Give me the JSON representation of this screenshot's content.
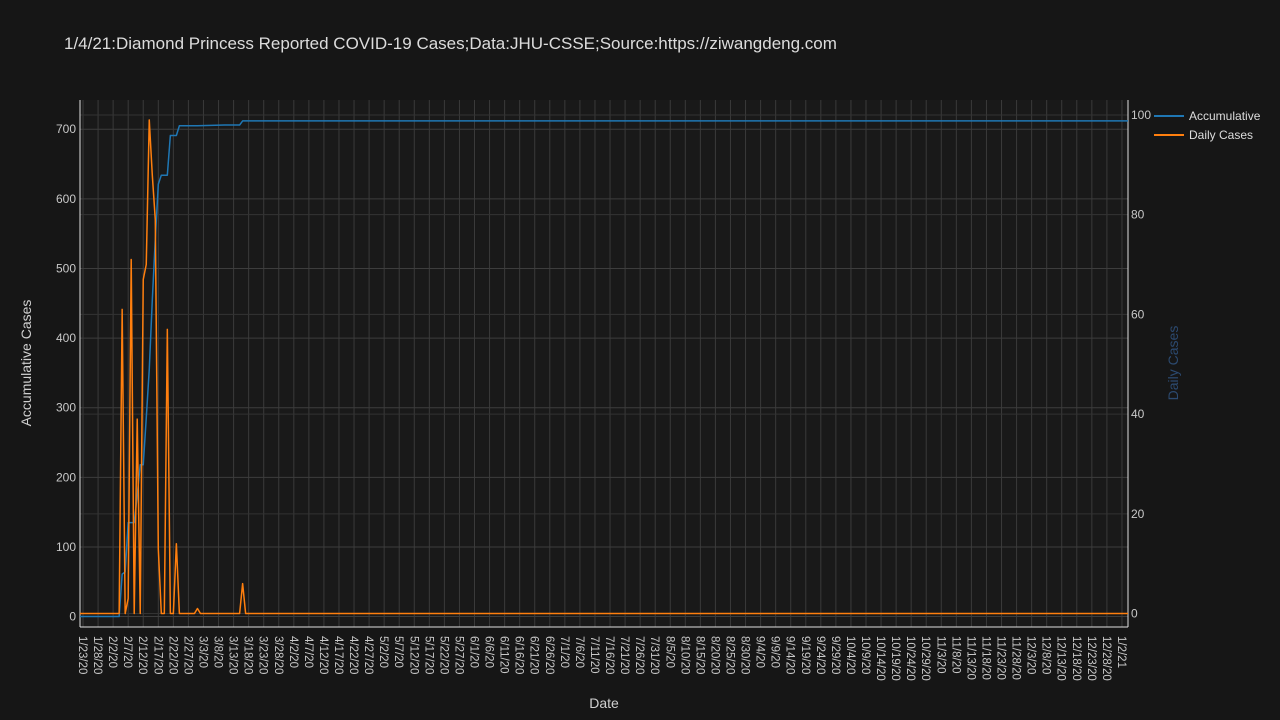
{
  "chart_data": {
    "type": "line",
    "title": "1/4/21:Diamond Princess Reported COVID-19 Cases;Data:JHU-CSSE;Source:https://ziwangdeng.com",
    "xlabel": "Date",
    "ylabel": "Accumulative Cases",
    "y2label": "Daily Cases",
    "start_date": "1/22/20",
    "end_date": "1/4/21",
    "xticks": [
      "1/23/20",
      "1/28/20",
      "2/2/20",
      "2/7/20",
      "2/12/20",
      "2/17/20",
      "2/22/20",
      "2/27/20",
      "3/3/20",
      "3/8/20",
      "3/13/20",
      "3/18/20",
      "3/23/20",
      "3/28/20",
      "4/2/20",
      "4/7/20",
      "4/12/20",
      "4/17/20",
      "4/22/20",
      "4/27/20",
      "5/2/20",
      "5/7/20",
      "5/12/20",
      "5/17/20",
      "5/22/20",
      "5/27/20",
      "6/1/20",
      "6/6/20",
      "6/11/20",
      "6/16/20",
      "6/21/20",
      "6/26/20",
      "7/1/20",
      "7/6/20",
      "7/11/20",
      "7/16/20",
      "7/21/20",
      "7/26/20",
      "7/31/20",
      "8/5/20",
      "8/10/20",
      "8/15/20",
      "8/20/20",
      "8/25/20",
      "8/30/20",
      "9/4/20",
      "9/9/20",
      "9/14/20",
      "9/19/20",
      "9/24/20",
      "9/29/20",
      "10/4/20",
      "10/9/20",
      "10/14/20",
      "10/19/20",
      "10/24/20",
      "10/29/20",
      "11/3/20",
      "11/8/20",
      "11/13/20",
      "11/18/20",
      "11/23/20",
      "11/28/20",
      "12/3/20",
      "12/8/20",
      "12/13/20",
      "12/18/20",
      "12/23/20",
      "12/28/20",
      "1/2/21"
    ],
    "ylim": [
      -15,
      742
    ],
    "yticks": [
      0,
      100,
      200,
      300,
      400,
      500,
      600,
      700
    ],
    "y2lim": [
      -2.7,
      103
    ],
    "y2ticks": [
      0,
      20,
      40,
      60,
      80,
      100
    ],
    "grid": true,
    "legend_position": "top-right",
    "series": [
      {
        "name": "Accumulative",
        "axis": "y",
        "color": "#1f77b4",
        "points": [
          [
            "1/22/20",
            0
          ],
          [
            "2/4/20",
            0
          ],
          [
            "2/5/20",
            61
          ],
          [
            "2/6/20",
            64
          ],
          [
            "2/7/20",
            135
          ],
          [
            "2/9/20",
            135
          ],
          [
            "2/10/20",
            174
          ],
          [
            "2/11/20",
            218
          ],
          [
            "2/12/20",
            218
          ],
          [
            "2/13/20",
            285
          ],
          [
            "2/14/20",
            355
          ],
          [
            "2/15/20",
            454
          ],
          [
            "2/16/20",
            542
          ],
          [
            "2/17/20",
            621
          ],
          [
            "2/18/20",
            634
          ],
          [
            "2/20/20",
            634
          ],
          [
            "2/21/20",
            691
          ],
          [
            "2/23/20",
            691
          ],
          [
            "2/24/20",
            705
          ],
          [
            "3/1/20",
            705
          ],
          [
            "3/10/20",
            706
          ],
          [
            "3/15/20",
            706
          ],
          [
            "3/16/20",
            712
          ],
          [
            "1/4/21",
            712
          ]
        ]
      },
      {
        "name": "Daily Cases",
        "axis": "y2",
        "color": "#ff7f0e",
        "points": [
          [
            "1/22/20",
            0
          ],
          [
            "2/4/20",
            0
          ],
          [
            "2/5/20",
            61
          ],
          [
            "2/6/20",
            0
          ],
          [
            "2/7/20",
            3
          ],
          [
            "2/8/20",
            71
          ],
          [
            "2/9/20",
            0
          ],
          [
            "2/10/20",
            39
          ],
          [
            "2/11/20",
            0
          ],
          [
            "2/12/20",
            67
          ],
          [
            "2/13/20",
            70
          ],
          [
            "2/14/20",
            99
          ],
          [
            "2/15/20",
            88
          ],
          [
            "2/16/20",
            79
          ],
          [
            "2/17/20",
            13
          ],
          [
            "2/18/20",
            0
          ],
          [
            "2/19/20",
            0
          ],
          [
            "2/20/20",
            57
          ],
          [
            "2/21/20",
            0
          ],
          [
            "2/22/20",
            0
          ],
          [
            "2/23/20",
            14
          ],
          [
            "2/24/20",
            0
          ],
          [
            "2/29/20",
            0
          ],
          [
            "3/1/20",
            1
          ],
          [
            "3/2/20",
            0
          ],
          [
            "3/15/20",
            0
          ],
          [
            "3/16/20",
            6
          ],
          [
            "3/17/20",
            0
          ],
          [
            "1/4/21",
            0
          ]
        ]
      }
    ]
  }
}
